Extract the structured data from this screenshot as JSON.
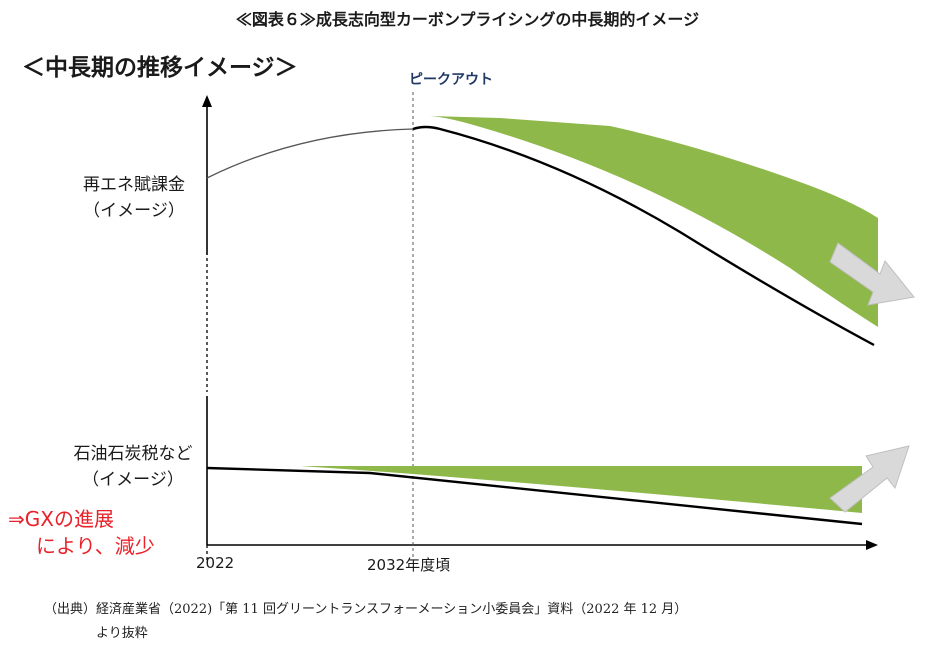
{
  "figure_title": "≪図表６≫成長志向型カーボンプライシングの中長期的イメージ",
  "subtitle": "＜中長期の推移イメージ＞",
  "peak_label": "ピークアウト",
  "upper_panel": {
    "label_line1": "再エネ賦課金",
    "label_line2": "（イメージ）"
  },
  "lower_panel": {
    "label_line1": "石油石炭税など",
    "label_line2": "（イメージ）",
    "note_line1": "⇒GXの進展",
    "note_line2": "により、減少"
  },
  "x_axis": {
    "tick_start": "2022",
    "tick_peak": "2032年度頃"
  },
  "source": {
    "line1": "（出典）経済産業省（2022)「第 11 回グリーントランスフォーメーション小委員会」資料（2022 年 12 月）",
    "line2": "より抜粋"
  },
  "colors": {
    "green_band": "#8fb84a",
    "arrow_fill": "#d9d9d9",
    "curve": "#000000",
    "peak_text": "#1f3864",
    "note_red": "#e8222a"
  }
}
